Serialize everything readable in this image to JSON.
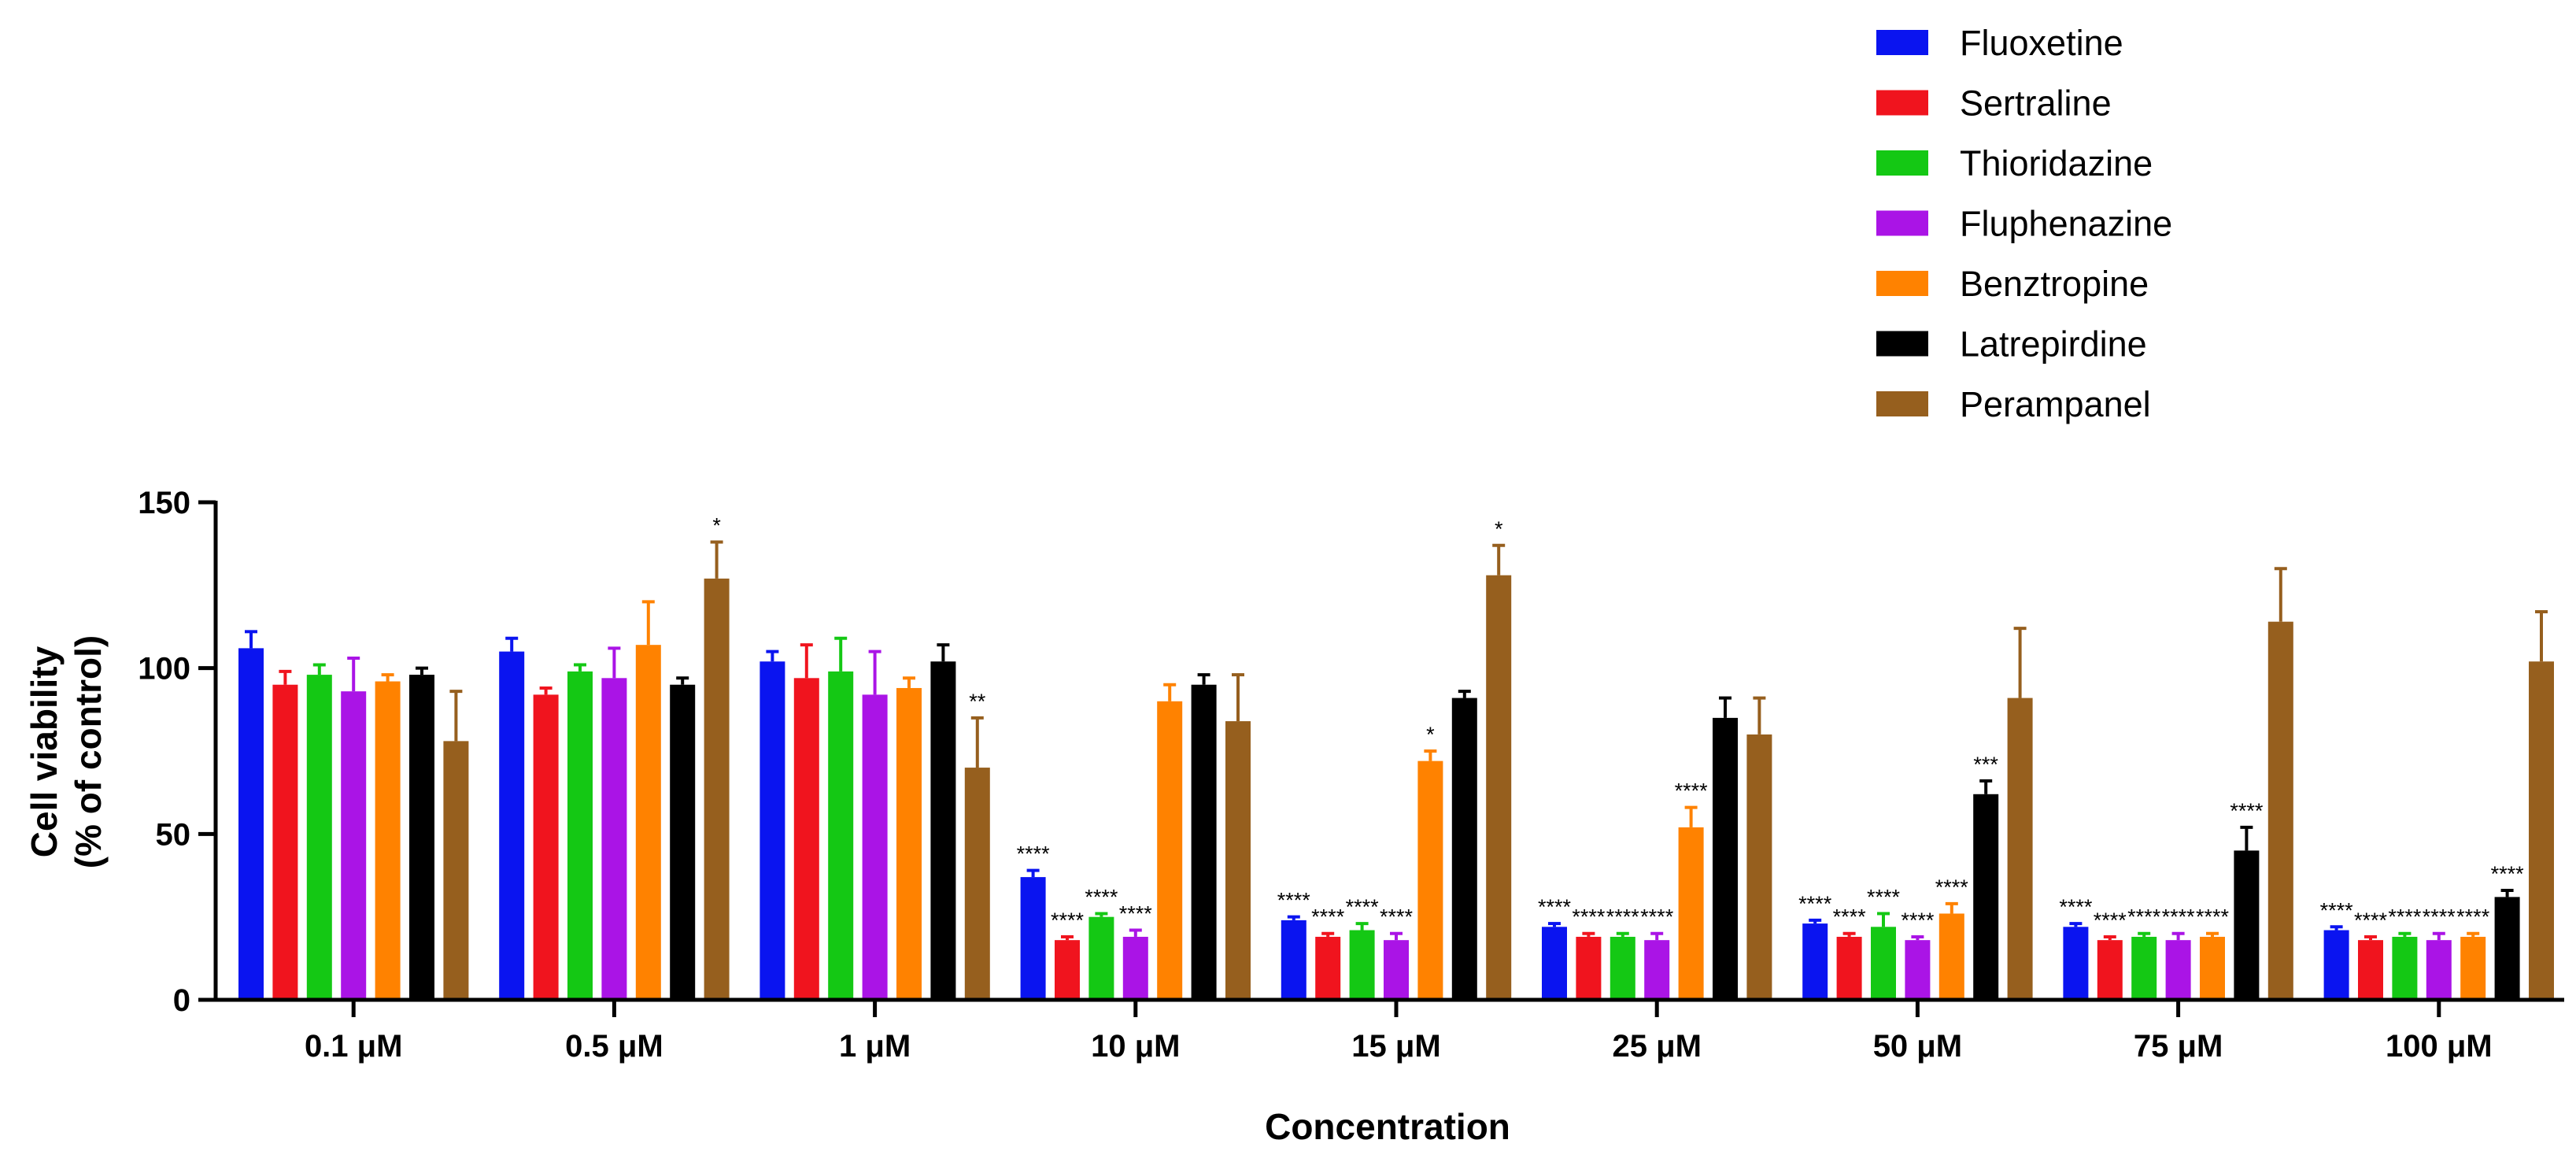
{
  "chart_data": {
    "type": "bar",
    "title": "",
    "xlabel": "Concentration",
    "ylabel": [
      "Cell viability",
      "(% of control)"
    ],
    "ylim": [
      0,
      150
    ],
    "yticks": [
      "0",
      "50",
      "100",
      "150"
    ],
    "ytick_values": [
      0,
      50,
      100,
      150
    ],
    "legend_position": "top-right",
    "categories": [
      "0.1 μM",
      "0.5 μM",
      "1 μM",
      "10 μM",
      "15 μM",
      "25 μM",
      "50 μM",
      "75 μM",
      "100 μM"
    ],
    "series": [
      {
        "name": "Fluoxetine",
        "color": "#0a14f0",
        "values": [
          106,
          105,
          102,
          37,
          24,
          22,
          23,
          22,
          21
        ],
        "errors": [
          5,
          4,
          3,
          2,
          1,
          1,
          1,
          1,
          1
        ],
        "sig": [
          "",
          "",
          "",
          "****",
          "****",
          "****",
          "****",
          "****",
          "****"
        ]
      },
      {
        "name": "Sertraline",
        "color": "#f0141e",
        "values": [
          95,
          92,
          97,
          18,
          19,
          19,
          19,
          18,
          18
        ],
        "errors": [
          4,
          2,
          10,
          1,
          1,
          1,
          1,
          1,
          1
        ],
        "sig": [
          "",
          "",
          "",
          "****",
          "****",
          "****",
          "****",
          "****",
          "****"
        ]
      },
      {
        "name": "Thioridazine",
        "color": "#14c814",
        "values": [
          98,
          99,
          99,
          25,
          21,
          19,
          22,
          19,
          19
        ],
        "errors": [
          3,
          2,
          10,
          1,
          2,
          1,
          4,
          1,
          1
        ],
        "sig": [
          "",
          "",
          "",
          "****",
          "****",
          "****",
          "****",
          "****",
          "****"
        ]
      },
      {
        "name": "Fluphenazine",
        "color": "#aa14e6",
        "values": [
          93,
          97,
          92,
          19,
          18,
          18,
          18,
          18,
          18
        ],
        "errors": [
          10,
          9,
          13,
          2,
          2,
          2,
          1,
          2,
          2
        ],
        "sig": [
          "",
          "",
          "",
          "****",
          "****",
          "****",
          "****",
          "****",
          "****"
        ]
      },
      {
        "name": "Benztropine",
        "color": "#ff8200",
        "values": [
          96,
          107,
          94,
          90,
          72,
          52,
          26,
          19,
          19
        ],
        "errors": [
          2,
          13,
          3,
          5,
          3,
          6,
          3,
          1,
          1
        ],
        "sig": [
          "",
          "",
          "",
          "",
          "*",
          "****",
          "****",
          "****",
          "****"
        ]
      },
      {
        "name": "Latrepirdine",
        "color": "#000000",
        "values": [
          98,
          95,
          102,
          95,
          91,
          85,
          62,
          45,
          31
        ],
        "errors": [
          2,
          2,
          5,
          3,
          2,
          6,
          4,
          7,
          2
        ],
        "sig": [
          "",
          "",
          "",
          "",
          "",
          "",
          "***",
          "****",
          "****"
        ]
      },
      {
        "name": "Perampanel",
        "color": "#965f1e",
        "values": [
          78,
          127,
          70,
          84,
          128,
          80,
          91,
          114,
          102
        ],
        "errors": [
          15,
          11,
          15,
          14,
          9,
          11,
          21,
          16,
          15
        ],
        "sig": [
          "",
          "*",
          "**",
          "",
          "*",
          "",
          "",
          "",
          ""
        ]
      }
    ]
  }
}
